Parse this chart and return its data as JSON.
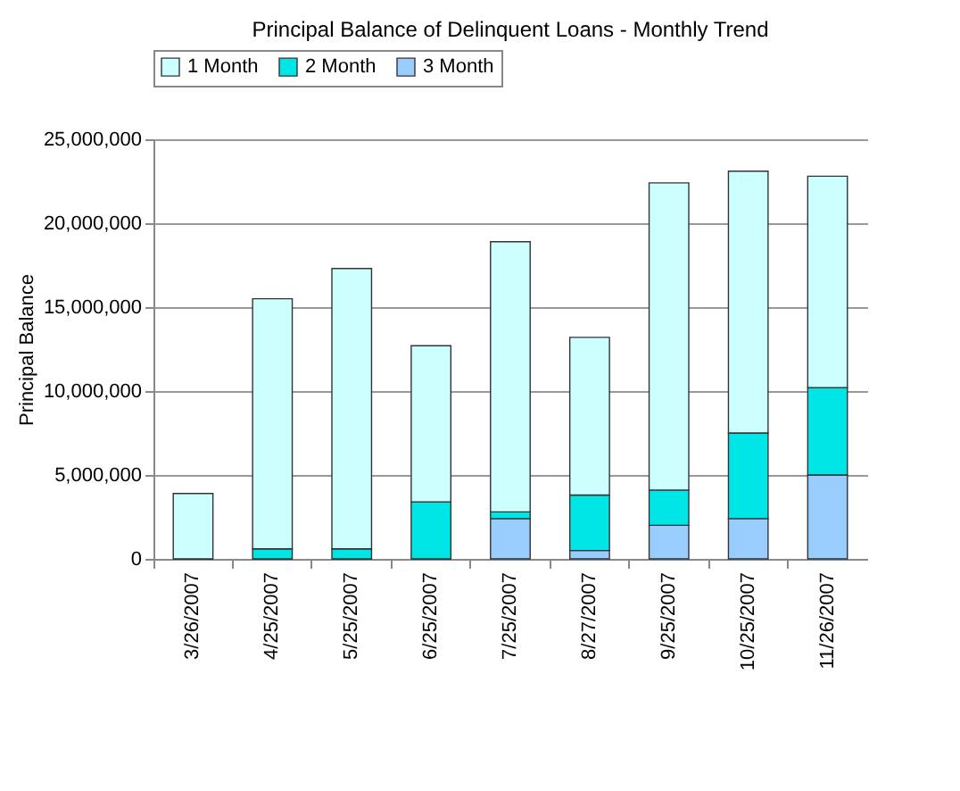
{
  "chart_data": {
    "type": "bar",
    "title": "Principal Balance of Delinquent Loans - Monthly Trend",
    "ylabel": "Principal Balance",
    "categories": [
      "3/26/2007",
      "4/25/2007",
      "5/25/2007",
      "6/25/2007",
      "7/25/2007",
      "8/27/2007",
      "9/25/2007",
      "10/25/2007",
      "11/26/2007"
    ],
    "stacked": true,
    "series": [
      {
        "name": "3 Month",
        "color": "#99ccff",
        "values": [
          0,
          0,
          0,
          0,
          2400000,
          500000,
          2000000,
          2400000,
          5000000
        ]
      },
      {
        "name": "2 Month",
        "color": "#00e6e6",
        "values": [
          0,
          600000,
          600000,
          3400000,
          400000,
          3300000,
          2100000,
          5100000,
          5200000
        ]
      },
      {
        "name": "1 Month",
        "color": "#ccffff",
        "values": [
          3900000,
          14900000,
          16700000,
          9300000,
          16100000,
          9400000,
          18300000,
          15600000,
          12600000
        ]
      }
    ],
    "ylim": [
      0,
      25000000
    ],
    "yticks": [
      0,
      {
        "value": 5000000,
        "label": "5,000,000"
      },
      {
        "value": 10000000,
        "label": "10,000,000"
      },
      {
        "value": 15000000,
        "label": "15,000,000"
      },
      {
        "value": 20000000,
        "label": "20,000,000"
      },
      {
        "value": 25000000,
        "label": "25,000,000"
      }
    ],
    "grid": "y",
    "legend": "top"
  }
}
